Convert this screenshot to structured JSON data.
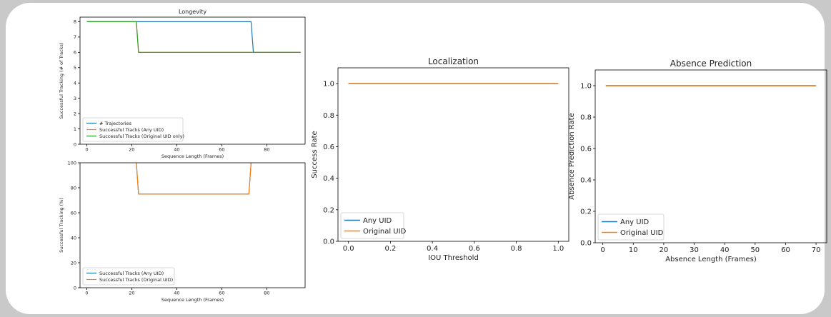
{
  "colors": {
    "blue": "#1f77b4",
    "orange": "#ff7f0e",
    "green": "#2ca02c"
  },
  "chart_data": [
    {
      "type": "line",
      "title": "Longevity",
      "xlabel": "Sequence Length (Frames)",
      "ylabel": "Successful Tracking (# of Tracks)",
      "xlim": [
        -3,
        97
      ],
      "ylim": [
        0,
        8.3
      ],
      "xticks": [
        "0",
        "20",
        "40",
        "60",
        "80"
      ],
      "xtick_values": [
        0,
        20,
        40,
        60,
        80
      ],
      "yticks": [
        "0",
        "1",
        "2",
        "3",
        "4",
        "5",
        "6",
        "7",
        "8"
      ],
      "ytick_values": [
        0,
        1,
        2,
        3,
        4,
        5,
        6,
        7,
        8
      ],
      "legend_position": "lower-left",
      "series": [
        {
          "name": "# Trajectories",
          "color": "#1f77b4",
          "x": [
            0,
            73,
            74,
            95
          ],
          "y": [
            8,
            8,
            6,
            6
          ]
        },
        {
          "name": "Successful Tracks (Any UID)",
          "color": "#ff7f0e",
          "x": [
            0,
            22,
            23,
            95
          ],
          "y": [
            8,
            8,
            6,
            6
          ]
        },
        {
          "name": "Successful Tracks (Original UID only)",
          "color": "#2ca02c",
          "x": [
            0,
            22,
            23,
            95
          ],
          "y": [
            8,
            8,
            6,
            6
          ]
        }
      ]
    },
    {
      "type": "line",
      "title": "",
      "xlabel": "Sequence Length (Frames)",
      "ylabel": "Successful Tracking (%)",
      "xlim": [
        -3,
        97
      ],
      "ylim": [
        0,
        100
      ],
      "xticks": [
        "0",
        "20",
        "40",
        "60",
        "80"
      ],
      "xtick_values": [
        0,
        20,
        40,
        60,
        80
      ],
      "yticks": [
        "0",
        "20",
        "40",
        "60",
        "80",
        "100"
      ],
      "ytick_values": [
        0,
        20,
        40,
        60,
        80,
        100
      ],
      "legend_position": "lower-left",
      "series": [
        {
          "name": "Successful Tracks (Any UID)",
          "color": "#1f77b4",
          "x": [
            22,
            23,
            72,
            73
          ],
          "y": [
            100,
            75,
            75,
            100
          ]
        },
        {
          "name": "Successful Tracks (Original UID)",
          "color": "#ff7f0e",
          "x": [
            22,
            23,
            72,
            73
          ],
          "y": [
            100,
            75,
            75,
            100
          ]
        }
      ]
    },
    {
      "type": "line",
      "title": "Localization",
      "xlabel": "IOU Threshold",
      "ylabel": "Success Rate",
      "xlim": [
        -0.05,
        1.05
      ],
      "ylim": [
        0,
        1.1
      ],
      "xticks": [
        "0.0",
        "0.2",
        "0.4",
        "0.6",
        "0.8",
        "1.0"
      ],
      "xtick_values": [
        0,
        0.2,
        0.4,
        0.6,
        0.8,
        1.0
      ],
      "yticks": [
        "0.0",
        "0.2",
        "0.4",
        "0.6",
        "0.8",
        "1.0"
      ],
      "ytick_values": [
        0,
        0.2,
        0.4,
        0.6,
        0.8,
        1.0
      ],
      "legend_position": "lower-left",
      "series": [
        {
          "name": "Any UID",
          "color": "#1f77b4",
          "x": [
            0,
            1
          ],
          "y": [
            1,
            1
          ]
        },
        {
          "name": "Original UID",
          "color": "#ff7f0e",
          "x": [
            0,
            1
          ],
          "y": [
            1,
            1
          ]
        }
      ]
    },
    {
      "type": "line",
      "title": "Absence Prediction",
      "xlabel": "Absence Length (Frames)",
      "ylabel": "Absence Prediction Rate",
      "xlim": [
        -2.5,
        73.5
      ],
      "ylim": [
        0,
        1.1
      ],
      "xticks": [
        "0",
        "10",
        "20",
        "30",
        "40",
        "50",
        "60",
        "70"
      ],
      "xtick_values": [
        0,
        10,
        20,
        30,
        40,
        50,
        60,
        70
      ],
      "yticks": [
        "0.0",
        "0.2",
        "0.4",
        "0.6",
        "0.8",
        "1.0"
      ],
      "ytick_values": [
        0,
        0.2,
        0.4,
        0.6,
        0.8,
        1.0
      ],
      "legend_position": "lower-left",
      "series": [
        {
          "name": "Any UID",
          "color": "#1f77b4",
          "x": [
            1,
            70
          ],
          "y": [
            1,
            1
          ]
        },
        {
          "name": "Original UID",
          "color": "#ff7f0e",
          "x": [
            1,
            70
          ],
          "y": [
            1,
            1
          ]
        }
      ]
    }
  ]
}
